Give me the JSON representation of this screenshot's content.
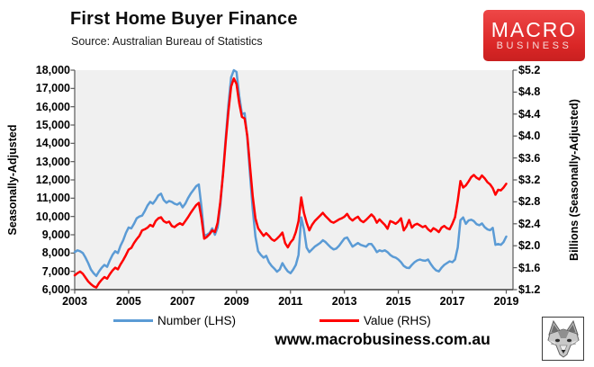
{
  "header": {
    "title": "First Home Buyer Finance",
    "source": "Source: Australian Bureau of Statistics"
  },
  "logo": {
    "line1": "MACRO",
    "line2": "BUSINESS",
    "bg_color": "#da2626"
  },
  "footer": {
    "website": "www.macrobusiness.com.au",
    "watermark": "fox-sketch-logo"
  },
  "chart_data": {
    "type": "line",
    "title": "First Home Buyer Finance",
    "source": "Source: Australian Bureau of Statistics",
    "plot_background": "#f0f0f0",
    "grid": false,
    "legend_position": "bottom",
    "x_axis": {
      "min": 2003,
      "max": 2019.25,
      "tick_years": [
        2003,
        2005,
        2007,
        2009,
        2011,
        2013,
        2015,
        2017,
        2019
      ],
      "tick_labels": [
        "2003",
        "2005",
        "2007",
        "2009",
        "2011",
        "2013",
        "2015",
        "2017",
        "2019"
      ]
    },
    "y_axis_left": {
      "label": "Seasonally-Adjusted",
      "min": 6000,
      "max": 18000,
      "tick_labels": [
        "18,000",
        "17,000",
        "16,000",
        "15,000",
        "14,000",
        "13,000",
        "12,000",
        "11,000",
        "10,000",
        "9,000",
        "8,000",
        "7,000",
        "6,000"
      ]
    },
    "y_axis_right": {
      "label": "Billions (Seasonally-Adjusted)",
      "min": 1.2,
      "max": 5.2,
      "tick_labels": [
        "$5.2",
        "$4.8",
        "$4.4",
        "$4.0",
        "$3.6",
        "$3.2",
        "$2.8",
        "$2.4",
        "$2.0",
        "$1.6",
        "$1.2"
      ]
    },
    "x_start": 2003.0,
    "x_step": 0.1,
    "x_count": 161,
    "series": [
      {
        "name": "Number (LHS)",
        "axis": "left",
        "color": "#5b9bd5",
        "values": [
          8050,
          8150,
          8100,
          8000,
          7750,
          7450,
          7100,
          6900,
          6750,
          7000,
          7200,
          7350,
          7250,
          7600,
          7900,
          8100,
          8000,
          8400,
          8700,
          9100,
          9400,
          9350,
          9600,
          9900,
          10000,
          10050,
          10300,
          10600,
          10800,
          10700,
          10900,
          11150,
          11250,
          10900,
          10750,
          10850,
          10800,
          10700,
          10650,
          10750,
          10500,
          10700,
          11000,
          11250,
          11450,
          11650,
          11750,
          10500,
          8950,
          9000,
          9100,
          9350,
          9000,
          9400,
          10600,
          12400,
          14300,
          16100,
          17600,
          18000,
          17900,
          16600,
          15600,
          15650,
          14300,
          12300,
          10400,
          8900,
          8100,
          7900,
          7750,
          7850,
          7500,
          7300,
          7150,
          6980,
          7100,
          7450,
          7200,
          7000,
          6900,
          7100,
          7350,
          7900,
          9950,
          9300,
          8300,
          8050,
          8200,
          8350,
          8450,
          8550,
          8700,
          8600,
          8450,
          8300,
          8200,
          8250,
          8400,
          8600,
          8800,
          8850,
          8600,
          8350,
          8450,
          8550,
          8450,
          8400,
          8350,
          8500,
          8500,
          8300,
          8050,
          8150,
          8100,
          8150,
          8050,
          7900,
          7800,
          7750,
          7650,
          7500,
          7300,
          7200,
          7180,
          7350,
          7500,
          7600,
          7650,
          7600,
          7580,
          7650,
          7400,
          7200,
          7050,
          7000,
          7200,
          7350,
          7450,
          7550,
          7500,
          7650,
          8300,
          9800,
          9950,
          9600,
          9780,
          9820,
          9750,
          9580,
          9520,
          9620,
          9420,
          9300,
          9250,
          9380,
          8450,
          8500,
          8450,
          8600,
          8900
        ]
      },
      {
        "name": "Value (RHS)",
        "axis": "right",
        "color": "#ff0000",
        "values": [
          1.46,
          1.5,
          1.53,
          1.49,
          1.42,
          1.35,
          1.3,
          1.26,
          1.24,
          1.32,
          1.38,
          1.43,
          1.4,
          1.48,
          1.55,
          1.6,
          1.57,
          1.66,
          1.74,
          1.83,
          1.93,
          1.96,
          2.05,
          2.12,
          2.18,
          2.28,
          2.3,
          2.33,
          2.38,
          2.35,
          2.45,
          2.5,
          2.52,
          2.45,
          2.42,
          2.44,
          2.36,
          2.34,
          2.38,
          2.41,
          2.38,
          2.45,
          2.52,
          2.6,
          2.67,
          2.74,
          2.78,
          2.5,
          2.13,
          2.16,
          2.21,
          2.28,
          2.25,
          2.42,
          2.8,
          3.3,
          3.9,
          4.45,
          4.9,
          5.05,
          4.95,
          4.6,
          4.35,
          4.32,
          4.0,
          3.45,
          2.9,
          2.5,
          2.32,
          2.25,
          2.18,
          2.23,
          2.18,
          2.12,
          2.09,
          2.13,
          2.18,
          2.24,
          2.05,
          1.97,
          2.06,
          2.12,
          2.25,
          2.45,
          2.88,
          2.6,
          2.42,
          2.28,
          2.38,
          2.45,
          2.5,
          2.55,
          2.6,
          2.54,
          2.49,
          2.44,
          2.42,
          2.45,
          2.48,
          2.5,
          2.53,
          2.58,
          2.5,
          2.46,
          2.5,
          2.53,
          2.46,
          2.43,
          2.47,
          2.52,
          2.57,
          2.52,
          2.42,
          2.48,
          2.43,
          2.38,
          2.31,
          2.45,
          2.43,
          2.4,
          2.44,
          2.5,
          2.28,
          2.35,
          2.47,
          2.33,
          2.38,
          2.4,
          2.37,
          2.34,
          2.36,
          2.3,
          2.26,
          2.32,
          2.29,
          2.25,
          2.33,
          2.36,
          2.32,
          2.3,
          2.4,
          2.52,
          2.82,
          3.18,
          3.06,
          3.1,
          3.17,
          3.25,
          3.29,
          3.24,
          3.21,
          3.28,
          3.23,
          3.16,
          3.12,
          3.05,
          2.93,
          3.02,
          3.01,
          3.06,
          3.13
        ]
      }
    ]
  }
}
